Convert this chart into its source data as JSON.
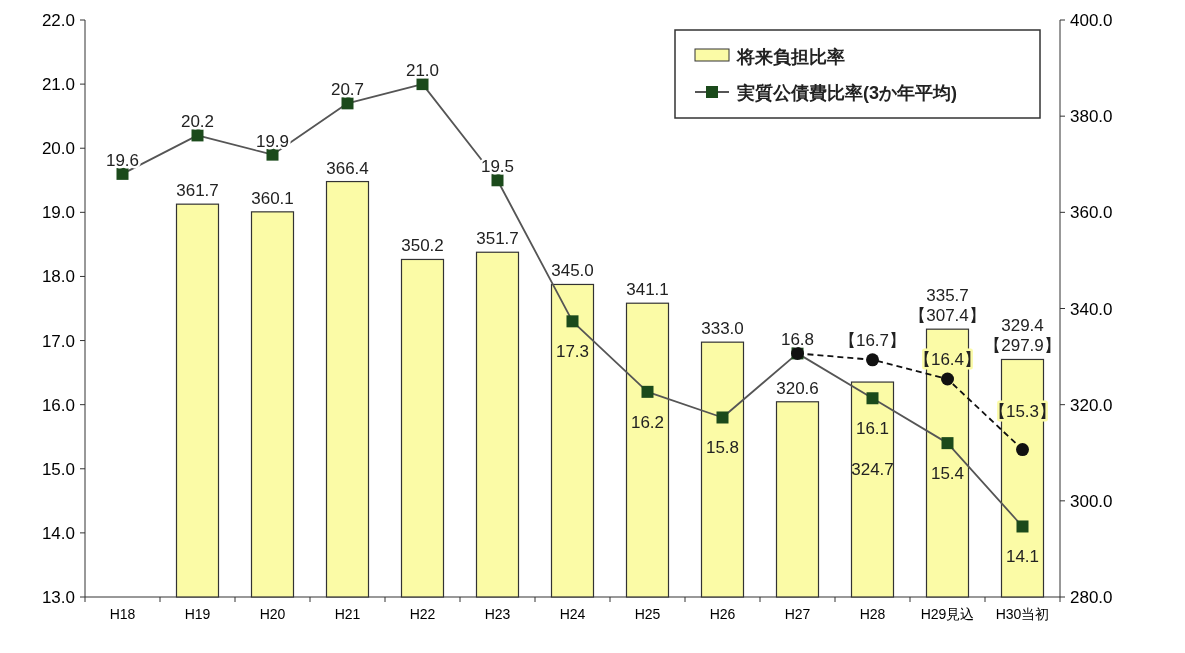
{
  "chart_data": {
    "type": "bar",
    "categories": [
      "H18",
      "H19",
      "H20",
      "H21",
      "H22",
      "H23",
      "H24",
      "H25",
      "H26",
      "H27",
      "H28",
      "H29見込",
      "H30当初"
    ],
    "ylim": [
      13,
      22
    ],
    "yticks": [
      {
        "value": 13,
        "label": "13.0"
      },
      {
        "value": 14,
        "label": "14.0"
      },
      {
        "value": 15,
        "label": "15.0"
      },
      {
        "value": 16,
        "label": "16.0"
      },
      {
        "value": 17,
        "label": "17.0"
      },
      {
        "value": 18,
        "label": "18.0"
      },
      {
        "value": 19,
        "label": "19.0"
      },
      {
        "value": 20,
        "label": "20.0"
      },
      {
        "value": 21,
        "label": "21.0"
      },
      {
        "value": 22,
        "label": "22.0"
      }
    ],
    "y2lim": [
      280,
      400
    ],
    "y2ticks": [
      {
        "value": 280,
        "label": "280.0"
      },
      {
        "value": 300,
        "label": "300.0"
      },
      {
        "value": 320,
        "label": "320.0"
      },
      {
        "value": 340,
        "label": "340.0"
      },
      {
        "value": 360,
        "label": "360.0"
      },
      {
        "value": 380,
        "label": "380.0"
      },
      {
        "value": 400,
        "label": "400.0"
      }
    ],
    "grid": false,
    "legend": "top right",
    "series": [
      {
        "name": "将来負担比率",
        "axis": "y2",
        "color": "#fbfba6",
        "values": [
          null,
          361.7,
          360.1,
          366.4,
          350.2,
          351.7,
          345.0,
          341.1,
          333.0,
          320.6,
          324.7,
          335.7,
          329.4
        ],
        "value_labels": [
          null,
          "361.7",
          "360.1",
          "366.4",
          "350.2",
          "351.7",
          "345.0",
          "341.1",
          "333.0",
          "320.6",
          "324.7",
          "335.7\n【307.4】",
          "329.4\n【297.9】"
        ]
      },
      {
        "name": "実質公債費比率(3か年平均)",
        "type": "line",
        "color": "#1b4a1b",
        "marker": "square",
        "line_style": "solid",
        "values": [
          19.6,
          20.2,
          19.9,
          20.7,
          21.0,
          19.5,
          17.3,
          16.2,
          15.8,
          16.8,
          16.1,
          15.4,
          14.1
        ],
        "value_labels": [
          "19.6",
          "20.2",
          "19.9",
          "20.7",
          "21.0",
          "19.5",
          "17.3",
          "16.2",
          "15.8",
          "16.8",
          "16.1",
          "15.4",
          "14.1"
        ]
      },
      {
        "type": "line",
        "color": "#111111",
        "marker": "circle",
        "line_style": "dashed",
        "x": [
          "H27",
          "H28",
          "H29見込",
          "H30当初"
        ],
        "values": [
          16.8,
          16.7,
          16.4,
          15.3
        ],
        "value_labels": [
          null,
          "【16.7】",
          "【16.4】",
          "【15.3】"
        ]
      }
    ]
  }
}
